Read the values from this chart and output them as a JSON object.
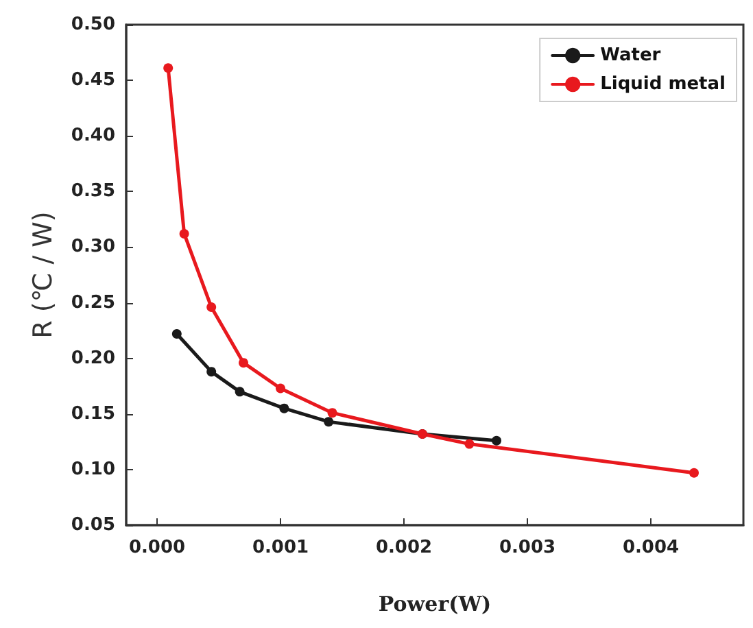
{
  "chart_data": {
    "type": "line",
    "xlabel": "Power(W)",
    "ylabel": "R (℃ / W)",
    "xlim": [
      -0.00025,
      0.00475
    ],
    "xticks": [
      {
        "value": 0,
        "label": "0.000"
      },
      {
        "value": 0.001,
        "label": "0.001"
      },
      {
        "value": 0.002,
        "label": "0.002"
      },
      {
        "value": 0.003,
        "label": "0.003"
      },
      {
        "value": 0.004,
        "label": "0.004"
      }
    ],
    "ylim": [
      0.05,
      0.5
    ],
    "yticks": [
      {
        "value": 0.05,
        "label": "0.05"
      },
      {
        "value": 0.1,
        "label": "0.10"
      },
      {
        "value": 0.15,
        "label": "0.15"
      },
      {
        "value": 0.2,
        "label": "0.20"
      },
      {
        "value": 0.25,
        "label": "0.25"
      },
      {
        "value": 0.3,
        "label": "0.30"
      },
      {
        "value": 0.35,
        "label": "0.35"
      },
      {
        "value": 0.4,
        "label": "0.40"
      },
      {
        "value": 0.45,
        "label": "0.45"
      },
      {
        "value": 0.5,
        "label": "0.50"
      }
    ],
    "series": [
      {
        "name": "Water",
        "color": "#1a1a1a",
        "x": [
          0.00016,
          0.00044,
          0.00067,
          0.00103,
          0.00139,
          0.00215,
          0.00275
        ],
        "values": [
          0.222,
          0.188,
          0.17,
          0.155,
          0.143,
          0.132,
          0.126
        ]
      },
      {
        "name": "Liquid metal",
        "color": "#e8191e",
        "x": [
          9e-05,
          0.00022,
          0.00044,
          0.0007,
          0.001,
          0.00142,
          0.00215,
          0.00253,
          0.00435
        ],
        "values": [
          0.461,
          0.312,
          0.246,
          0.196,
          0.173,
          0.151,
          0.132,
          0.123,
          0.097
        ]
      }
    ],
    "legend": "top right",
    "marker": "circle",
    "line_style": "solid",
    "grid": false
  }
}
